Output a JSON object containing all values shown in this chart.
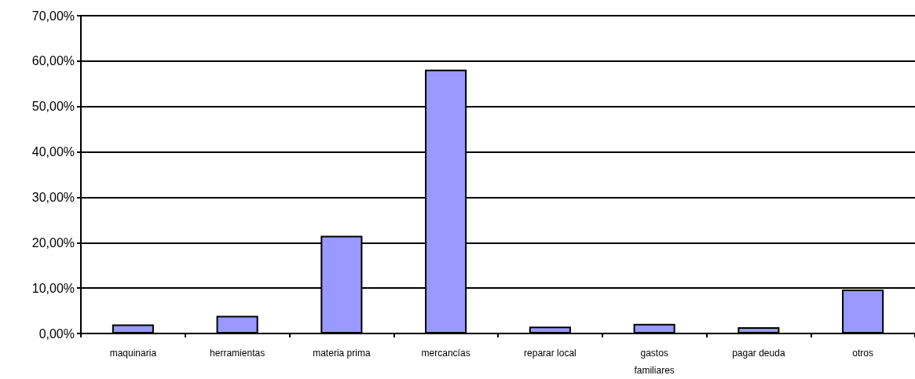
{
  "chart_data": {
    "type": "bar",
    "categories": [
      "maquinaria",
      "herramientas",
      "materia prima",
      "mercancías",
      "reparar local",
      "gastos\nfamiliares",
      "pagar deuda",
      "otros"
    ],
    "values": [
      2.0,
      3.9,
      21.5,
      58.1,
      1.5,
      2.1,
      1.4,
      9.7
    ],
    "color": "#9999ff",
    "ylim": [
      0,
      70
    ],
    "yticks": [
      {
        "value": 0,
        "label": "0,00%"
      },
      {
        "value": 10,
        "label": "10,00%"
      },
      {
        "value": 20,
        "label": "20,00%"
      },
      {
        "value": 30,
        "label": "30,00%"
      },
      {
        "value": 40,
        "label": "40,00%"
      },
      {
        "value": 50,
        "label": "50,00%"
      },
      {
        "value": 60,
        "label": "60,00%"
      },
      {
        "value": 70,
        "label": "70,00%"
      }
    ],
    "grid": "y",
    "legend": false
  }
}
